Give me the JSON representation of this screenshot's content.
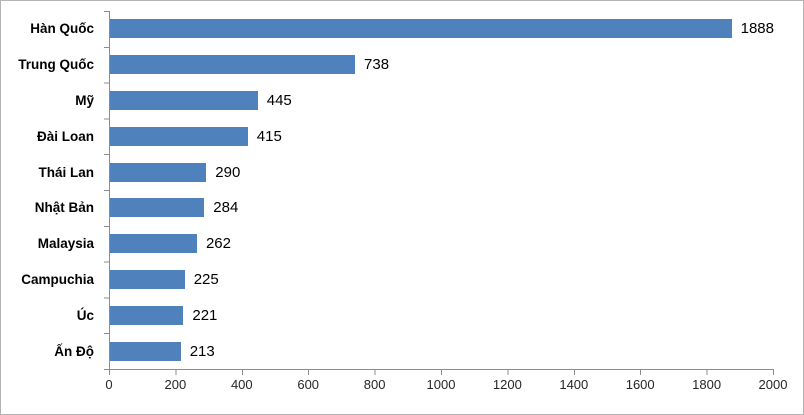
{
  "chart_data": {
    "type": "bar",
    "orientation": "horizontal",
    "title": "",
    "xlabel": "",
    "ylabel": "",
    "categories": [
      "Hàn Quốc",
      "Trung Quốc",
      "Mỹ",
      "Đài Loan",
      "Thái Lan",
      "Nhật Bản",
      "Malaysia",
      "Campuchia",
      "Úc",
      "Ấn Độ"
    ],
    "values": [
      1888,
      738,
      445,
      415,
      290,
      284,
      262,
      225,
      221,
      213
    ],
    "value_labels": [
      "1888",
      "738",
      "445",
      "415",
      "290",
      "284",
      "262",
      "225",
      "221",
      "213"
    ],
    "xlim": [
      0,
      2000
    ],
    "x_ticks": [
      "0",
      "200",
      "400",
      "600",
      "800",
      "1000",
      "1200",
      "1400",
      "1600",
      "1800",
      "2000"
    ],
    "grid": "off",
    "legend": "none",
    "bar_color": "#4f81bd",
    "axis_color": "#8c8c8c",
    "text_color": "#000000"
  }
}
